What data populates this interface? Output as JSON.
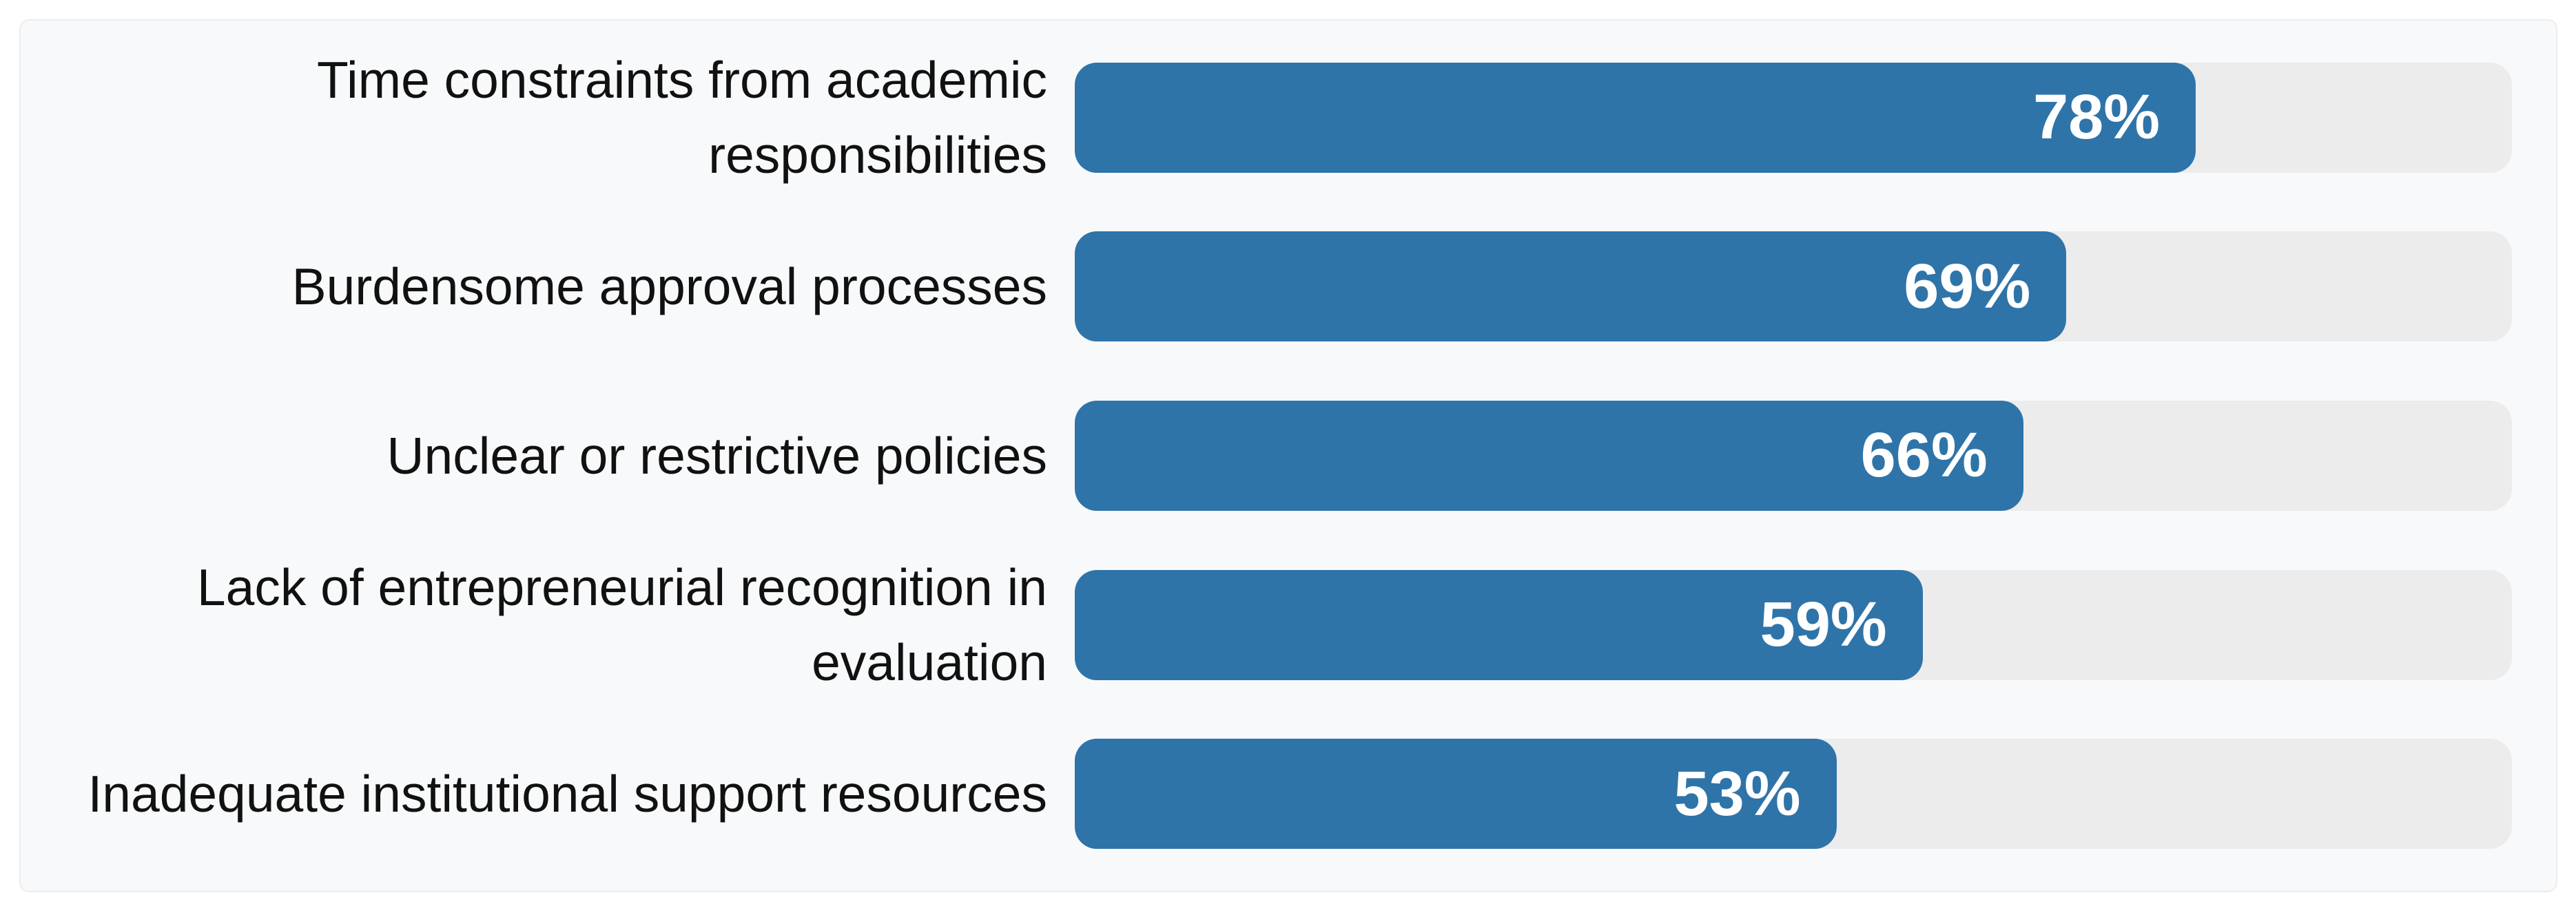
{
  "chart_data": {
    "type": "bar",
    "orientation": "horizontal",
    "title": "",
    "xlabel": "",
    "ylabel": "",
    "xlim": [
      0,
      100
    ],
    "grid": false,
    "legend": "none",
    "categories": [
      "Time constraints from academic responsibilities",
      "Burdensome approval processes",
      "Unclear or restrictive policies",
      "Lack of entrepreneurial recognition in evaluation",
      "Inadequate institutional support resources"
    ],
    "values": [
      78,
      69,
      66,
      59,
      53
    ],
    "value_labels": [
      "78%",
      "69%",
      "66%",
      "59%",
      "53%"
    ],
    "colors": {
      "bar": "#2e74a9",
      "track": "#ececec",
      "card_background": "#f8f9fa",
      "card_border": "#ededed",
      "page_background": "#ffffff",
      "label_text": "#111111",
      "value_text": "#ffffff"
    }
  }
}
